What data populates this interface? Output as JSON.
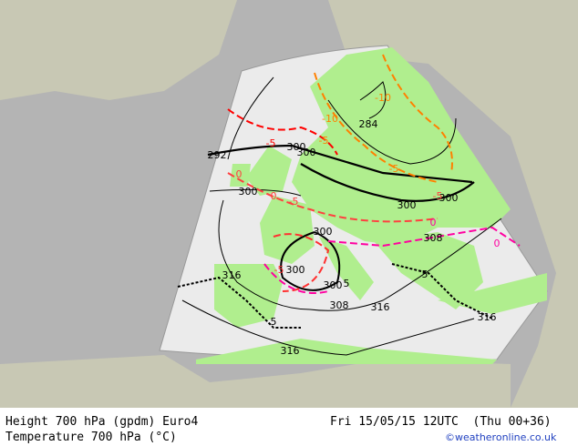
{
  "footer": {
    "line1_left": "Height 700 hPa (gpdm) Euro4",
    "line2_left": "Temperature 700 hPa (°C)",
    "line1_right": "Fri 15/05/15 12UTC  (Thu 00+36)",
    "credit": "©weatheronline.co.uk"
  },
  "map": {
    "height_labels": [
      292,
      300,
      300,
      284,
      300,
      300,
      300,
      308,
      300,
      300,
      300,
      308,
      316,
      316,
      316,
      316
    ],
    "temperature_labels": [
      -10,
      -10,
      -5,
      -5,
      -5,
      0,
      0,
      -5,
      -5,
      0,
      5,
      5,
      5,
      0,
      -5
    ]
  }
}
